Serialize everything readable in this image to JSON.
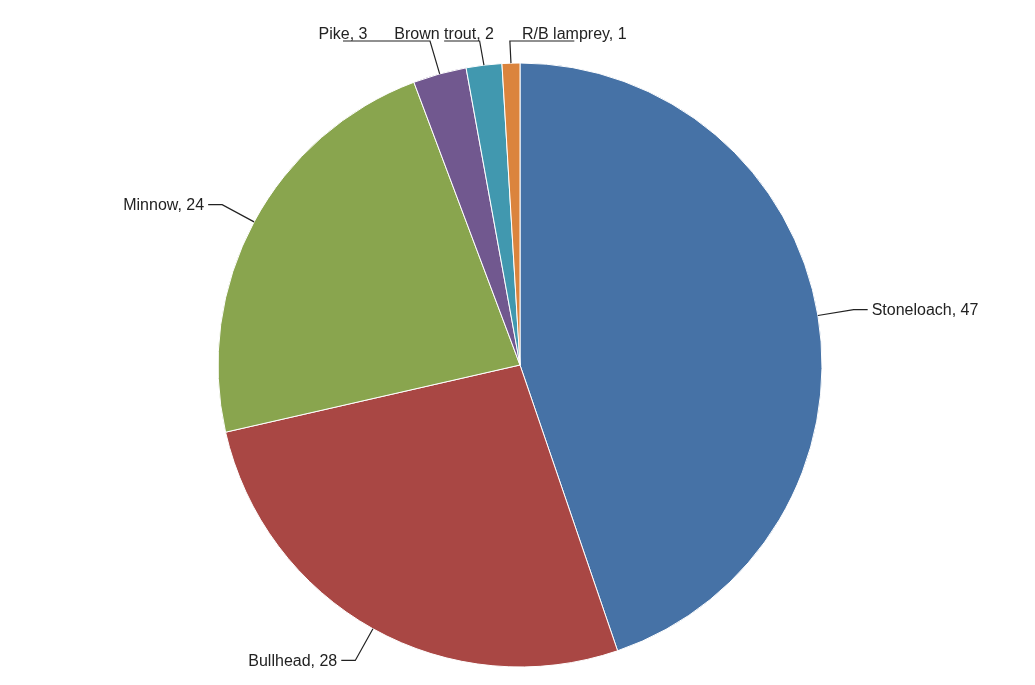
{
  "chart_data": {
    "type": "pie",
    "categories": [
      "Stoneloach",
      "Bullhead",
      "Minnow",
      "Pike",
      "Brown trout",
      "R/B lamprey"
    ],
    "values": [
      47,
      28,
      24,
      3,
      2,
      1
    ],
    "value_labels": [
      ", 47",
      ", 28",
      ", 24",
      ", 3",
      ", 2",
      ", 1"
    ],
    "colors": [
      "#4672a6",
      "#a94744",
      "#89a54e",
      "#71588f",
      "#4198af",
      "#db843d"
    ],
    "legend": false
  }
}
